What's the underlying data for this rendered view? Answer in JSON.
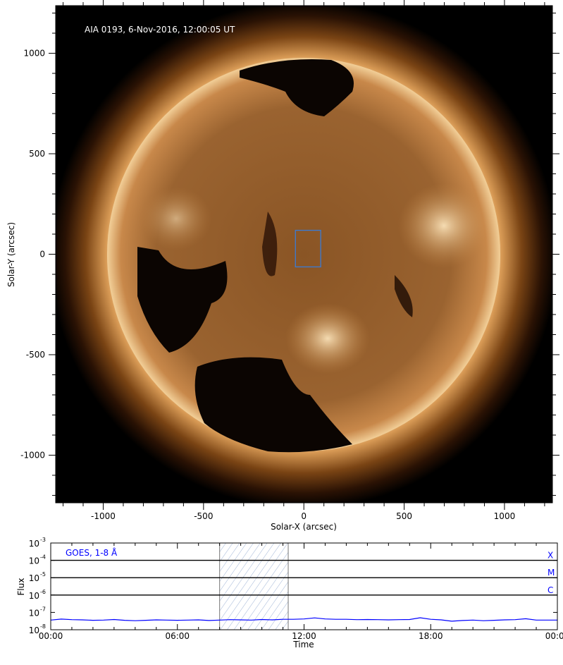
{
  "chart_data": [
    {
      "type": "image",
      "title": "AIA 0193, 6-Nov-2016, 12:00:05 UT",
      "xlabel": "Solar-X (arcsec)",
      "ylabel": "Solar-Y (arcsec)",
      "xlim": [
        -1237,
        1239
      ],
      "ylim": [
        -1237,
        1237
      ],
      "xticks": [
        -1000,
        -500,
        0,
        500,
        1000
      ],
      "yticks": [
        -1000,
        -500,
        0,
        500,
        1000
      ],
      "xtick_labels": [
        "-1000",
        "-500",
        "0",
        "500",
        "1000"
      ],
      "ytick_labels": [
        "-1000",
        "-500",
        "0",
        "500",
        "1000"
      ],
      "solar_radius_arcsec": 980,
      "colormap": "sdo-aia-193",
      "highlight_box": {
        "x": [
          -42,
          84
        ],
        "y": [
          -63,
          119
        ],
        "color": "#3a7bd5"
      }
    },
    {
      "type": "line",
      "xlabel": "Time",
      "ylabel": "Flux",
      "yscale": "log",
      "ylim": [
        1e-08,
        0.001
      ],
      "xlim_hours": [
        0,
        24
      ],
      "xtick_labels": [
        "00:00",
        "06:00",
        "12:00",
        "18:00",
        "00:00"
      ],
      "ytick_labels": [
        {
          "base": "10",
          "exp": "-8"
        },
        {
          "base": "10",
          "exp": "-7"
        },
        {
          "base": "10",
          "exp": "-6"
        },
        {
          "base": "10",
          "exp": "-5"
        },
        {
          "base": "10",
          "exp": "-4"
        },
        {
          "base": "10",
          "exp": "-3"
        }
      ],
      "legend": "GOES, 1-8 Å",
      "legend_placement": "top-left",
      "series_color": "#0000ff",
      "class_levels": [
        {
          "label": "C",
          "flux": 1e-06
        },
        {
          "label": "M",
          "flux": 1e-05
        },
        {
          "label": "X",
          "flux": 0.0001
        }
      ],
      "shaded_interval_hours": [
        8.0,
        11.25
      ],
      "x_hours": [
        0,
        0.5,
        1,
        1.5,
        2,
        2.5,
        3,
        3.5,
        4,
        4.5,
        5,
        5.5,
        6,
        6.5,
        7,
        7.5,
        8,
        8.5,
        9,
        9.5,
        10,
        10.5,
        11,
        11.5,
        12,
        12.5,
        13,
        13.5,
        14,
        14.5,
        15,
        15.5,
        16,
        16.5,
        17,
        17.5,
        18,
        18.5,
        19,
        19.5,
        20,
        20.5,
        21,
        21.5,
        22,
        22.5,
        23,
        23.5,
        24
      ],
      "values": [
        3.6e-08,
        4.1e-08,
        3.8e-08,
        3.7e-08,
        3.5e-08,
        3.6e-08,
        3.9e-08,
        3.5e-08,
        3.3e-08,
        3.5e-08,
        3.7e-08,
        3.6e-08,
        3.5e-08,
        3.6e-08,
        3.7e-08,
        3.4e-08,
        3.6e-08,
        3.8e-08,
        3.7e-08,
        3.6e-08,
        3.9e-08,
        3.7e-08,
        4e-08,
        4e-08,
        4.2e-08,
        4.8e-08,
        4.2e-08,
        4e-08,
        4e-08,
        3.8e-08,
        3.9e-08,
        3.8e-08,
        3.7e-08,
        3.8e-08,
        3.9e-08,
        4.9e-08,
        4e-08,
        3.7e-08,
        3.1e-08,
        3.4e-08,
        3.6e-08,
        3.3e-08,
        3.5e-08,
        3.7e-08,
        3.8e-08,
        4.3e-08,
        3.6e-08,
        3.6e-08,
        3.6e-08
      ]
    }
  ]
}
